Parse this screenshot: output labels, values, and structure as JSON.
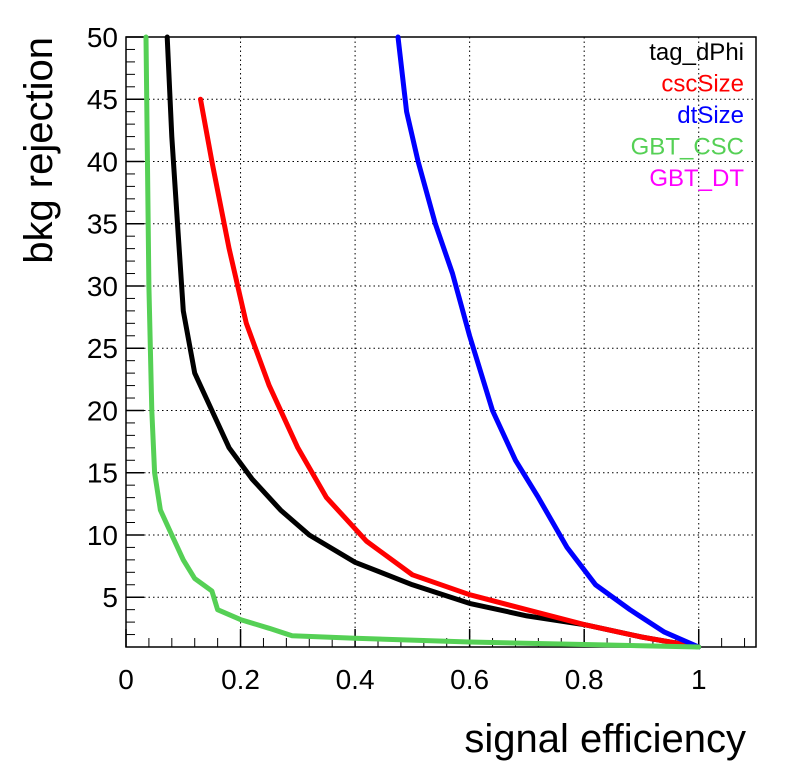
{
  "chart_data": {
    "type": "line",
    "xlabel": "signal efficiency",
    "ylabel": "bkg rejection",
    "xlim": [
      0,
      1.1
    ],
    "ylim": [
      1,
      50
    ],
    "xticks": [
      0,
      0.2,
      0.4,
      0.6,
      0.8,
      1
    ],
    "xtick_labels": [
      "0",
      "0.2",
      "0.4",
      "0.6",
      "0.8",
      "1"
    ],
    "yticks": [
      5,
      10,
      15,
      20,
      25,
      30,
      35,
      40,
      45,
      50
    ],
    "ytick_labels": [
      "5",
      "10",
      "15",
      "20",
      "25",
      "30",
      "35",
      "40",
      "45",
      "50"
    ],
    "grid": true,
    "legend_position": "top-right",
    "series": [
      {
        "name": "tag_dPhi",
        "color": "#000000",
        "points": [
          [
            0.072,
            50
          ],
          [
            0.08,
            42
          ],
          [
            0.09,
            35
          ],
          [
            0.1,
            28
          ],
          [
            0.12,
            23
          ],
          [
            0.15,
            20
          ],
          [
            0.18,
            17
          ],
          [
            0.22,
            14.5
          ],
          [
            0.27,
            12
          ],
          [
            0.32,
            10
          ],
          [
            0.4,
            7.8
          ],
          [
            0.5,
            6
          ],
          [
            0.6,
            4.5
          ],
          [
            0.7,
            3.5
          ],
          [
            0.8,
            2.8
          ],
          [
            0.9,
            1.8
          ],
          [
            1.0,
            1.0
          ]
        ]
      },
      {
        "name": "cscSize",
        "color": "#ff0000",
        "points": [
          [
            0.13,
            45
          ],
          [
            0.15,
            40
          ],
          [
            0.18,
            33
          ],
          [
            0.21,
            27
          ],
          [
            0.25,
            22
          ],
          [
            0.3,
            17
          ],
          [
            0.35,
            13
          ],
          [
            0.42,
            9.5
          ],
          [
            0.5,
            6.8
          ],
          [
            0.6,
            5.2
          ],
          [
            0.7,
            4.0
          ],
          [
            0.8,
            2.8
          ],
          [
            0.9,
            1.8
          ],
          [
            1.0,
            1.0
          ]
        ]
      },
      {
        "name": "dtSize",
        "color": "#0000ff",
        "points": [
          [
            0.475,
            50
          ],
          [
            0.49,
            44
          ],
          [
            0.51,
            40
          ],
          [
            0.54,
            35
          ],
          [
            0.57,
            31
          ],
          [
            0.6,
            26
          ],
          [
            0.64,
            20
          ],
          [
            0.68,
            16
          ],
          [
            0.72,
            13
          ],
          [
            0.77,
            9
          ],
          [
            0.82,
            6
          ],
          [
            0.88,
            4
          ],
          [
            0.94,
            2.2
          ],
          [
            1.0,
            1.0
          ]
        ]
      },
      {
        "name": "GBT_CSC",
        "color": "#55d055",
        "points": [
          [
            0.035,
            50
          ],
          [
            0.04,
            30
          ],
          [
            0.045,
            20
          ],
          [
            0.05,
            15
          ],
          [
            0.06,
            12
          ],
          [
            0.08,
            10
          ],
          [
            0.1,
            8
          ],
          [
            0.12,
            6.5
          ],
          [
            0.15,
            5.5
          ],
          [
            0.16,
            4
          ],
          [
            0.2,
            3.2
          ],
          [
            0.25,
            2.5
          ],
          [
            0.29,
            1.9
          ],
          [
            0.4,
            1.7
          ],
          [
            0.6,
            1.4
          ],
          [
            0.8,
            1.2
          ],
          [
            1.0,
            1.0
          ]
        ]
      },
      {
        "name": "GBT_DT",
        "color": "#ff00ff",
        "points": []
      }
    ]
  }
}
